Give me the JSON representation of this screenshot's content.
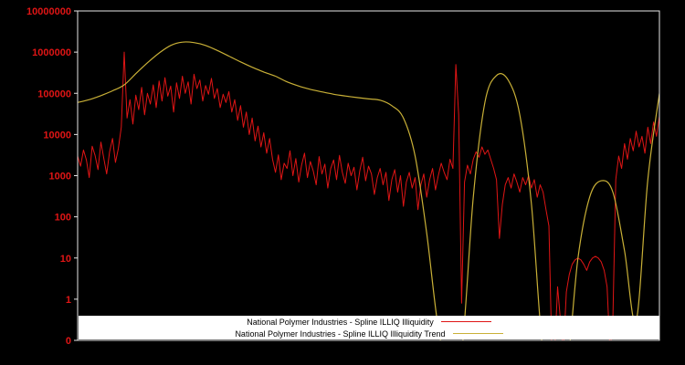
{
  "figure": {
    "background": "#000000",
    "plot_border_color": "#e6e6e6"
  },
  "axis": {
    "y_tick_labels": [
      "10000000",
      "1000000",
      "100000",
      "10000",
      "1000",
      "100",
      "10",
      "1",
      "0"
    ],
    "tick_label_color": "#e01515",
    "tick_color": "#e6e6e6"
  },
  "legend": {
    "background": "#ffffff",
    "text_color": "#000000",
    "entries": [
      {
        "label": "National Polymer Industries - Spline ILLIQ Illiquidity",
        "color": "#e01515"
      },
      {
        "label": "National Polymer Industries - Spline ILLIQ Illiquidity Trend",
        "color": "#c9b037"
      }
    ]
  },
  "chart_data": {
    "type": "line",
    "yscale": "log",
    "ylim": [
      0.1,
      10000000
    ],
    "x_range": [
      0,
      1
    ],
    "grid": false,
    "legend_position": "bottom-center",
    "series": [
      {
        "name": "National Polymer Industries - Spline ILLIQ Illiquidity",
        "color": "#e01515",
        "style": "noisy",
        "values": [
          3000,
          1700,
          4200,
          2400,
          900,
          5200,
          3100,
          1400,
          6500,
          2600,
          1100,
          3800,
          8000,
          2100,
          4600,
          15000,
          1000000,
          25000,
          70000,
          18000,
          90000,
          40000,
          140000,
          30000,
          100000,
          55000,
          160000,
          45000,
          200000,
          65000,
          240000,
          85000,
          150000,
          35000,
          180000,
          75000,
          260000,
          100000,
          190000,
          55000,
          290000,
          130000,
          210000,
          65000,
          155000,
          95000,
          230000,
          75000,
          130000,
          45000,
          95000,
          60000,
          110000,
          35000,
          70000,
          22000,
          50000,
          15000,
          35000,
          10000,
          25000,
          7000,
          16000,
          5000,
          11000,
          3500,
          8000,
          2500,
          1200,
          3200,
          800,
          2000,
          1500,
          4000,
          1000,
          2600,
          700,
          1800,
          3500,
          900,
          2200,
          1300,
          600,
          2900,
          1100,
          1900,
          500,
          1500,
          2400,
          800,
          3100,
          1200,
          650,
          2000,
          1000,
          1600,
          450,
          1300,
          2800,
          750,
          1700,
          1100,
          350,
          900,
          1500,
          600,
          1200,
          250,
          800,
          1400,
          400,
          1000,
          180,
          700,
          1200,
          500,
          900,
          150,
          600,
          1100,
          300,
          800,
          1500,
          450,
          1000,
          2000,
          1200,
          800,
          2500,
          1500,
          500000,
          30000,
          0.8,
          700,
          1800,
          1100,
          2500,
          3800,
          2800,
          5000,
          3300,
          4200,
          2500,
          1500,
          800,
          30,
          200,
          600,
          900,
          500,
          1100,
          700,
          400,
          900,
          600,
          1000,
          500,
          800,
          300,
          600,
          400,
          150,
          60,
          0.05,
          0.02,
          2,
          0.3,
          0.05,
          1.5,
          4,
          7,
          9,
          10,
          9,
          7,
          5,
          8,
          10,
          11,
          10,
          8,
          5,
          2,
          0.05,
          0.3,
          800,
          3000,
          1500,
          6000,
          2500,
          8000,
          4000,
          12000,
          5000,
          9000,
          3500,
          15000,
          6000,
          20000,
          9000,
          28000
        ]
      },
      {
        "name": "National Polymer Industries - Spline ILLIQ Illiquidity Trend",
        "color": "#c9b037",
        "style": "smooth",
        "values": [
          60000,
          70000,
          88000,
          115000,
          160000,
          300000,
          550000,
          950000,
          1450000,
          1750000,
          1700000,
          1450000,
          1100000,
          800000,
          580000,
          430000,
          330000,
          260000,
          190000,
          150000,
          125000,
          108000,
          95000,
          86000,
          79000,
          73000,
          68000,
          50000,
          25000,
          3000,
          40,
          0.2,
          0.001,
          0.05,
          300,
          60000,
          270000,
          210000,
          30000,
          200,
          0.05,
          0.001,
          0.01,
          10,
          300,
          750,
          400,
          15,
          0.3,
          800,
          100000
        ]
      }
    ]
  }
}
